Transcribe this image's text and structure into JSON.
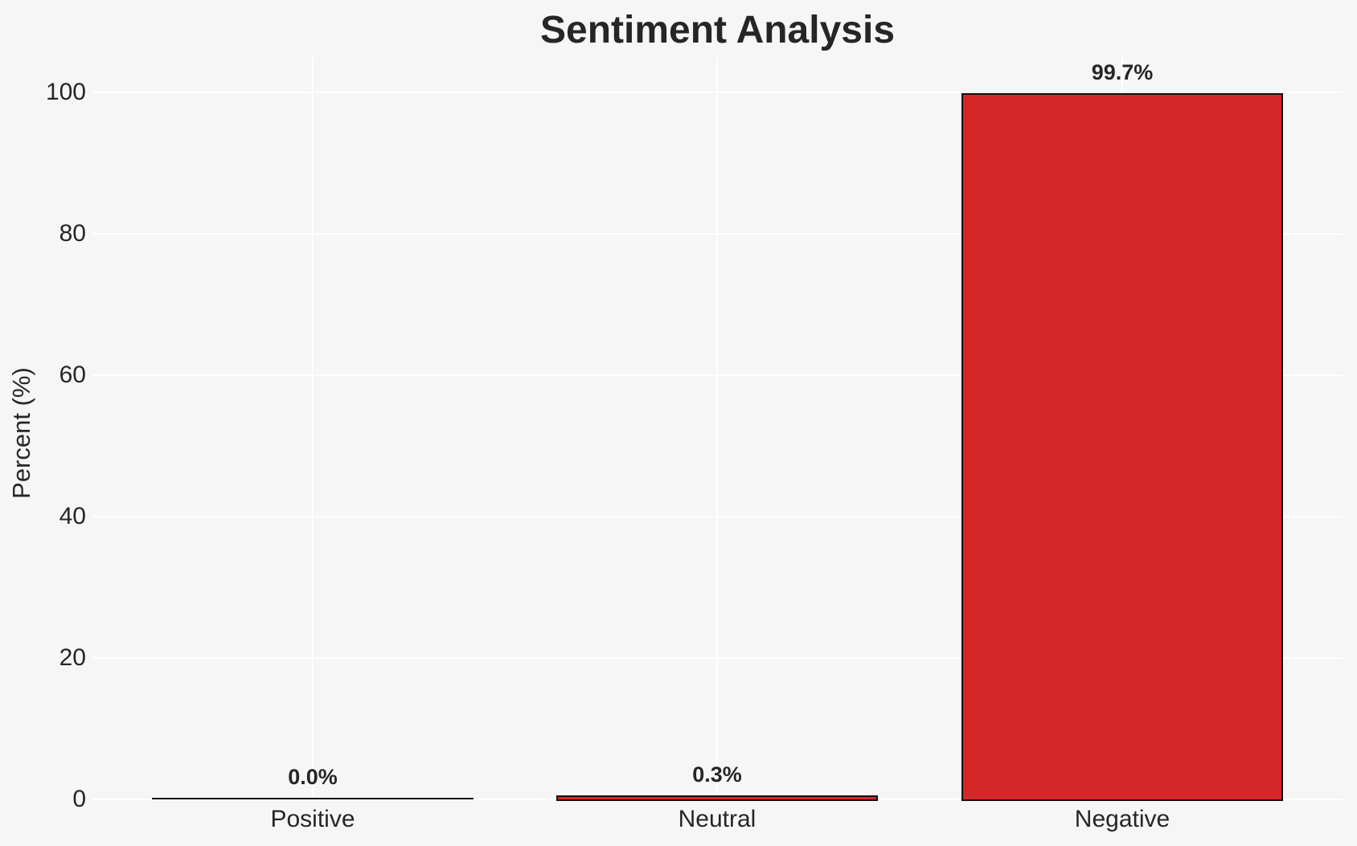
{
  "chart_data": {
    "type": "bar",
    "title": "Sentiment Analysis",
    "xlabel": "",
    "ylabel": "Percent (%)",
    "categories": [
      "Positive",
      "Neutral",
      "Negative"
    ],
    "values": [
      0.0,
      0.3,
      99.7
    ],
    "value_labels": [
      "0.0%",
      "0.3%",
      "99.7%"
    ],
    "yticks": [
      0,
      20,
      40,
      60,
      80,
      100
    ],
    "ylim": [
      0,
      105
    ],
    "grid": "on",
    "legend_position": "none",
    "colors": {
      "bar_fill": "#d62728",
      "bar_edge": "#111111",
      "background": "#f6f6f6",
      "gridline": "#ffffff",
      "text": "#262626"
    }
  }
}
